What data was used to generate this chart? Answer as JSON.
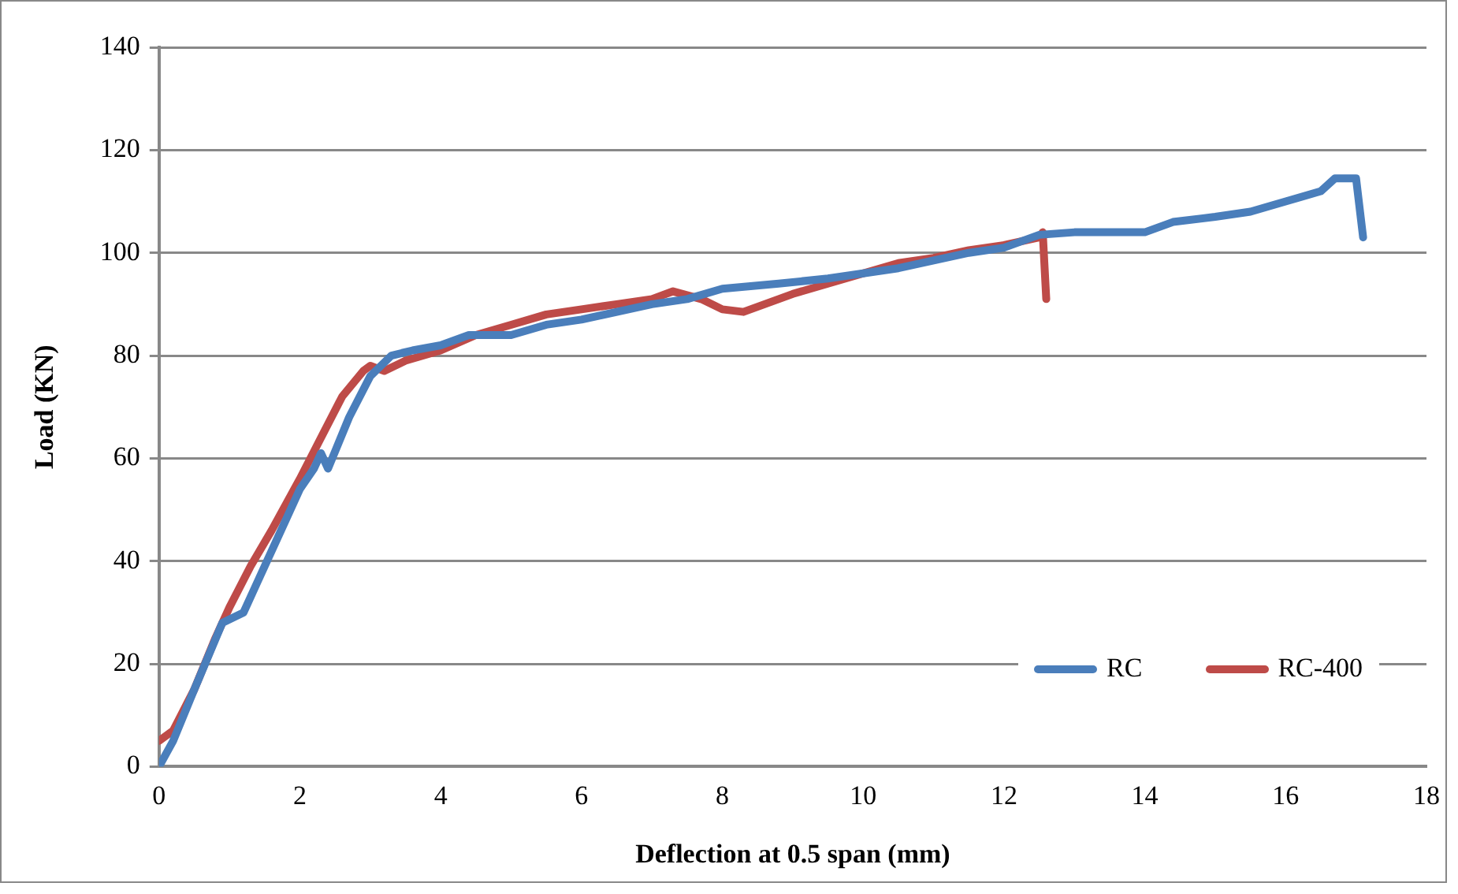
{
  "chart_data": {
    "type": "line",
    "xlabel": "Deflection at 0.5 span (mm)",
    "ylabel": "Load (KN)",
    "xlim": [
      0,
      18
    ],
    "xticks": [
      0,
      2,
      4,
      6,
      8,
      10,
      12,
      14,
      16,
      18
    ],
    "ylim": [
      0,
      140
    ],
    "yticks": [
      0,
      20,
      40,
      60,
      80,
      100,
      120,
      140
    ],
    "grid": "y",
    "legend": "bottom right",
    "marker": "none",
    "line_style": "solid",
    "series": [
      {
        "name": "RC",
        "color": "#4a7ebb",
        "x": [
          0,
          0.2,
          0.5,
          0.9,
          1.2,
          1.4,
          1.7,
          2.0,
          2.2,
          2.3,
          2.4,
          2.7,
          3.0,
          3.3,
          3.6,
          4.0,
          4.4,
          5.0,
          5.5,
          6.0,
          7.0,
          7.5,
          8.0,
          8.8,
          9.5,
          10.5,
          11.5,
          12.0,
          12.5,
          13.0,
          14.0,
          14.4,
          15.0,
          15.5,
          16.0,
          16.5,
          16.7,
          17.0,
          17.1
        ],
        "values": [
          0,
          5,
          15,
          28,
          30,
          36,
          45,
          54,
          58,
          61,
          58,
          68,
          76,
          80,
          81,
          82,
          84,
          84,
          86,
          87,
          90,
          91,
          93,
          94,
          95,
          97,
          100,
          101,
          103.5,
          104,
          104,
          106,
          107,
          108,
          110,
          112,
          114.5,
          114.5,
          103
        ]
      },
      {
        "name": "RC-400",
        "color": "#be4b48",
        "x": [
          0,
          0.2,
          0.5,
          0.8,
          1.0,
          1.3,
          1.6,
          2.0,
          2.3,
          2.6,
          2.9,
          3.0,
          3.2,
          3.5,
          4.0,
          4.5,
          5.0,
          5.5,
          6.0,
          6.5,
          7.0,
          7.3,
          7.7,
          8.0,
          8.3,
          9.0,
          9.5,
          10.0,
          10.5,
          11.0,
          11.5,
          12.0,
          12.5,
          12.55,
          12.6
        ],
        "values": [
          5,
          7,
          15,
          25,
          31,
          39,
          46,
          56,
          64,
          72,
          77,
          78,
          77,
          79,
          81,
          84,
          86,
          88,
          89,
          90,
          91,
          92.5,
          91,
          89,
          88.5,
          92,
          94,
          96,
          98,
          99,
          100.5,
          101.5,
          103,
          104,
          91
        ]
      }
    ]
  }
}
